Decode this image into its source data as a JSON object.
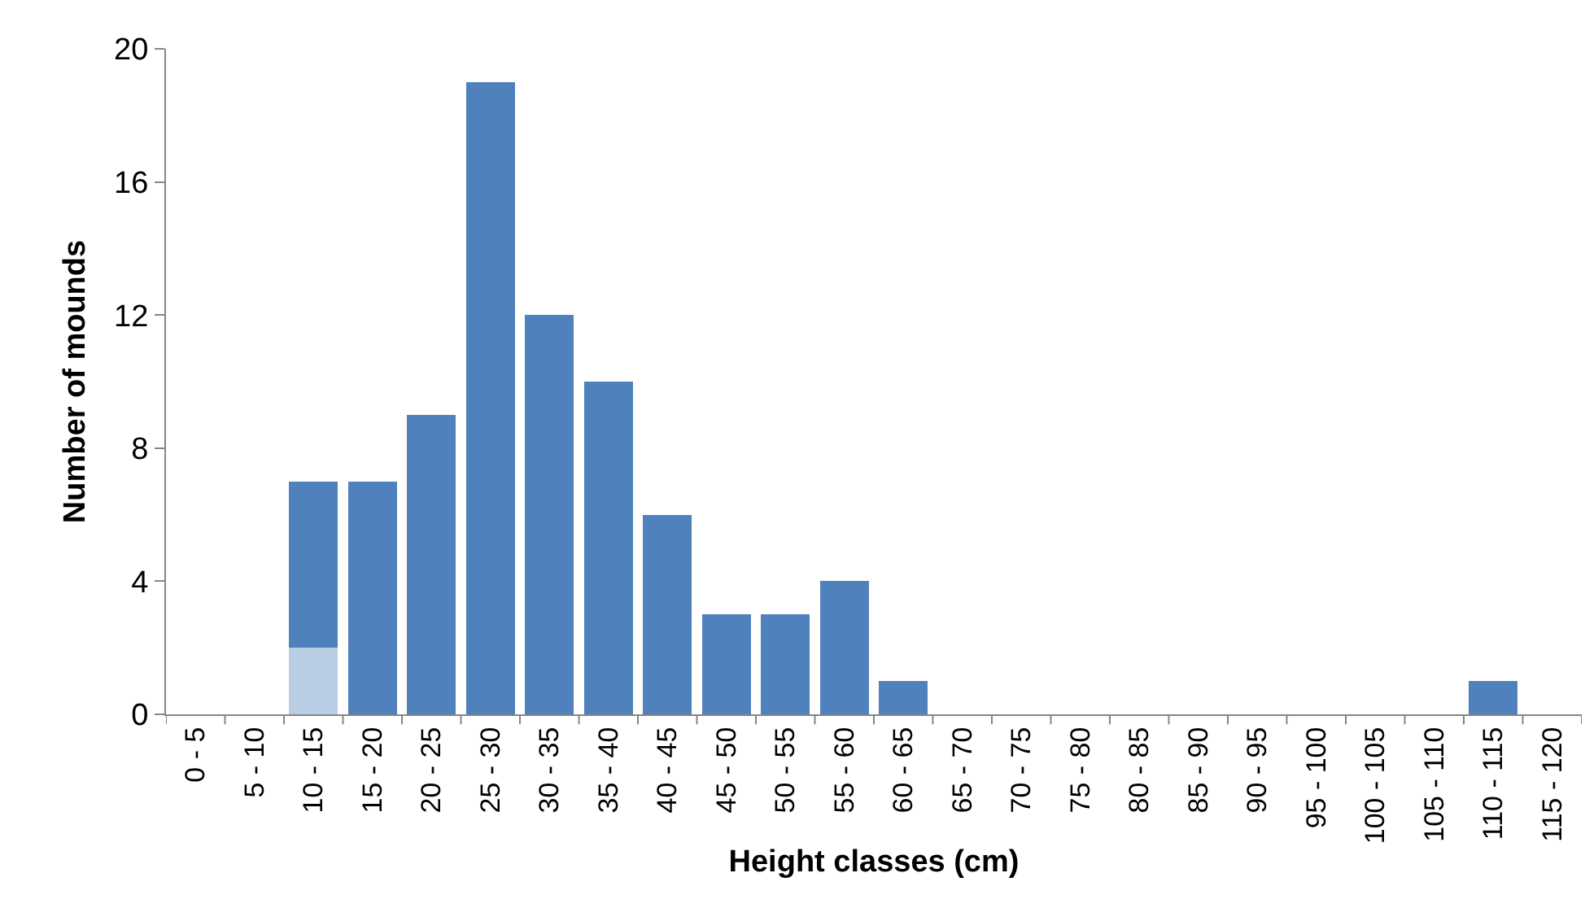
{
  "chart_data": {
    "type": "bar",
    "stacked": true,
    "xlabel": "Height classes (cm)",
    "ylabel": "Number of mounds",
    "categories": [
      "0 - 5",
      "5 - 10",
      "10 - 15",
      "15 - 20",
      "20 - 25",
      "25 - 30",
      "30 - 35",
      "35 - 40",
      "40 - 45",
      "45 - 50",
      "50 - 55",
      "55 - 60",
      "60 - 65",
      "65 - 70",
      "70 - 75",
      "75 - 80",
      "80 - 85",
      "85 - 90",
      "90 - 95",
      "95 - 100",
      "100 - 105",
      "105 - 110",
      "110 - 115",
      "115 - 120"
    ],
    "series": [
      {
        "color": "#b9cde5",
        "values": [
          null,
          null,
          2,
          null,
          null,
          null,
          null,
          null,
          null,
          null,
          null,
          null,
          null,
          null,
          null,
          null,
          null,
          null,
          null,
          null,
          null,
          null,
          null,
          null
        ]
      },
      {
        "color": "#4f81bd",
        "values": [
          0,
          0,
          5,
          7,
          9,
          19,
          12,
          10,
          6,
          3,
          3,
          4,
          1,
          0,
          0,
          0,
          0,
          0,
          0,
          0,
          0,
          0,
          1,
          0
        ]
      }
    ],
    "ylim": [
      0,
      20
    ],
    "yticks": [
      0,
      4,
      8,
      12,
      16,
      20
    ]
  }
}
